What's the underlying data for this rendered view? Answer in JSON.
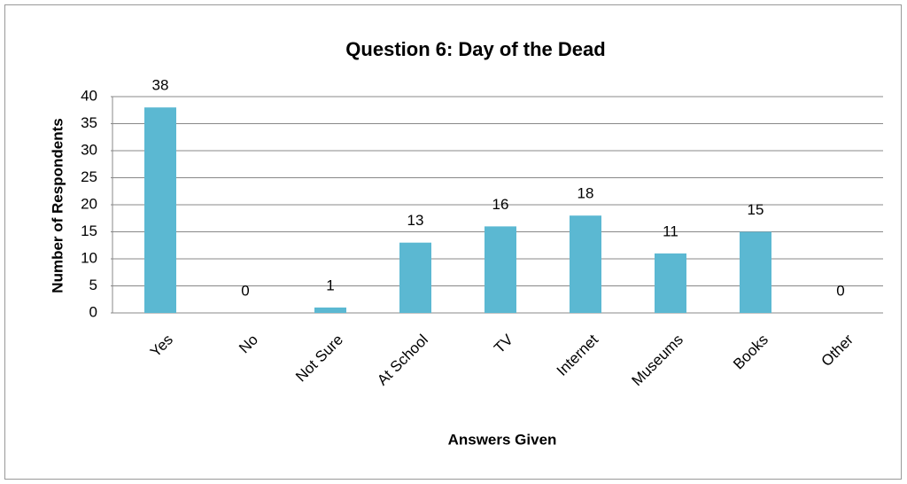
{
  "chart_data": {
    "type": "bar",
    "title": "Question 6: Day of the Dead",
    "x_label": "Answers Given",
    "y_label": "Number of Respondents",
    "categories": [
      "Yes",
      "No",
      "Not Sure",
      "At School",
      "TV",
      "Internet",
      "Museums",
      "Books",
      "Other"
    ],
    "values": [
      38,
      0,
      1,
      13,
      16,
      18,
      11,
      15,
      0
    ],
    "color": "#5bb8d2",
    "ylim": [
      0,
      40
    ],
    "yticks": [
      0,
      5,
      10,
      15,
      20,
      25,
      30,
      35,
      40
    ],
    "grid": true
  }
}
